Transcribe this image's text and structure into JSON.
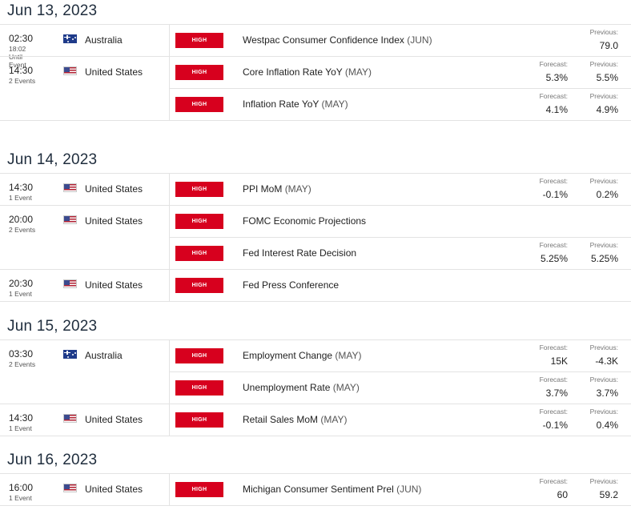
{
  "colors": {
    "high_badge": "#d7001e",
    "divider": "#e3e3e3"
  },
  "labels": {
    "previous": "Previous:",
    "forecast": "Forecast:",
    "high": "HIGH"
  },
  "days": [
    {
      "date": "Jun 13, 2023",
      "groups": [
        {
          "time": "02:30",
          "extra": [
            "18:02",
            "Until",
            "Event"
          ],
          "country": "Australia",
          "flag": "au-flag-icon",
          "events": [
            {
              "name": "Westpac Consumer Confidence Index",
              "period": "(JUN)",
              "forecast": null,
              "previous": "79.0"
            }
          ]
        },
        {
          "time": "14:30",
          "extra": [
            "2 Events"
          ],
          "country": "United States",
          "flag": "us-flag-icon",
          "events": [
            {
              "name": "Core Inflation Rate YoY",
              "period": "(MAY)",
              "forecast": "5.3%",
              "previous": "5.5%"
            },
            {
              "name": "Inflation Rate YoY",
              "period": "(MAY)",
              "forecast": "4.1%",
              "previous": "4.9%"
            }
          ]
        }
      ]
    },
    {
      "date": "Jun 14, 2023",
      "groups": [
        {
          "time": "14:30",
          "extra": [
            "1 Event"
          ],
          "country": "United States",
          "flag": "us-flag-icon",
          "events": [
            {
              "name": "PPI MoM",
              "period": "(MAY)",
              "forecast": "-0.1%",
              "previous": "0.2%"
            }
          ]
        },
        {
          "time": "20:00",
          "extra": [
            "2 Events"
          ],
          "country": "United States",
          "flag": "us-flag-icon",
          "events": [
            {
              "name": "FOMC Economic Projections",
              "period": "",
              "forecast": null,
              "previous": null
            },
            {
              "name": "Fed Interest Rate Decision",
              "period": "",
              "forecast": "5.25%",
              "previous": "5.25%"
            }
          ]
        },
        {
          "time": "20:30",
          "extra": [
            "1 Event"
          ],
          "country": "United States",
          "flag": "us-flag-icon",
          "events": [
            {
              "name": "Fed Press Conference",
              "period": "",
              "forecast": null,
              "previous": null
            }
          ]
        }
      ]
    },
    {
      "date": "Jun 15, 2023",
      "groups": [
        {
          "time": "03:30",
          "extra": [
            "2 Events"
          ],
          "country": "Australia",
          "flag": "au-flag-icon",
          "events": [
            {
              "name": "Employment Change",
              "period": "(MAY)",
              "forecast": "15K",
              "previous": "-4.3K"
            },
            {
              "name": "Unemployment Rate",
              "period": "(MAY)",
              "forecast": "3.7%",
              "previous": "3.7%"
            }
          ]
        },
        {
          "time": "14:30",
          "extra": [
            "1 Event"
          ],
          "country": "United States",
          "flag": "us-flag-icon",
          "events": [
            {
              "name": "Retail Sales MoM",
              "period": "(MAY)",
              "forecast": "-0.1%",
              "previous": "0.4%"
            }
          ]
        }
      ]
    },
    {
      "date": "Jun 16, 2023",
      "groups": [
        {
          "time": "16:00",
          "extra": [
            "1 Event"
          ],
          "country": "United States",
          "flag": "us-flag-icon",
          "events": [
            {
              "name": "Michigan Consumer Sentiment Prel",
              "period": "(JUN)",
              "forecast": "60",
              "previous": "59.2"
            }
          ]
        }
      ]
    }
  ]
}
